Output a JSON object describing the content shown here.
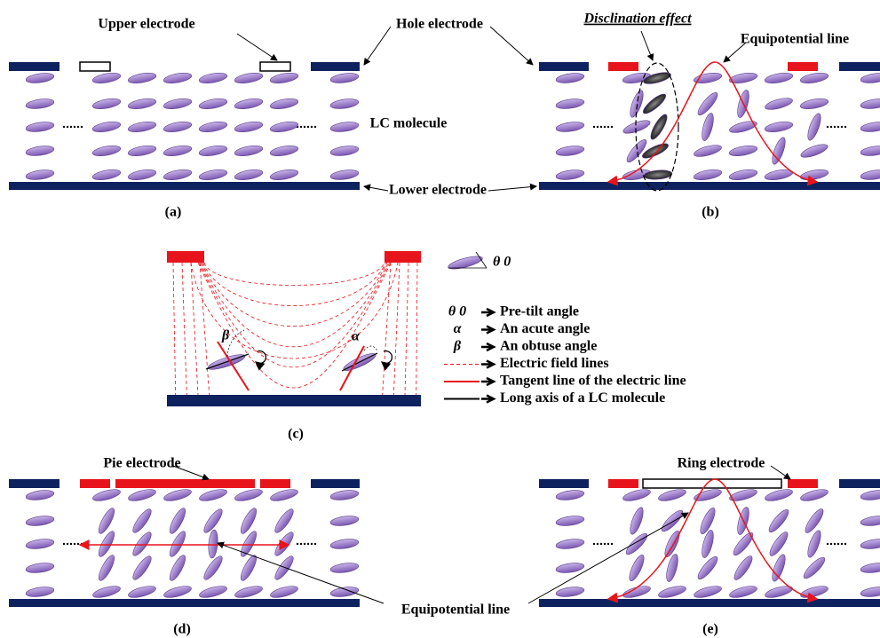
{
  "panels": {
    "a": {
      "label": "(a)",
      "upper_electrode": "Upper electrode",
      "hole_electrode": "Hole electrode",
      "lc_molecule": "LC molecule",
      "lower_electrode": "Lower electrode"
    },
    "b": {
      "label": "(b)",
      "disclination": "Disclination effect",
      "equipotential": "Equipotential line"
    },
    "c": {
      "label": "(c)",
      "beta": "β",
      "alpha": "α",
      "theta": "θ 0",
      "legend": [
        {
          "symbol": "θ 0",
          "text": "Pre-tilt angle"
        },
        {
          "symbol": "α",
          "text": "An acute angle"
        },
        {
          "symbol": "β",
          "text": "An obtuse angle"
        },
        {
          "text": "Electric field lines"
        },
        {
          "text": "Tangent line of the electric line"
        },
        {
          "text": "Long axis of a LC molecule"
        }
      ]
    },
    "d": {
      "label": "(d)",
      "pie_electrode": "Pie electrode"
    },
    "e": {
      "label": "(e)",
      "ring_electrode": "Ring electrode"
    },
    "shared": {
      "equipotential": "Equipotential line"
    }
  }
}
